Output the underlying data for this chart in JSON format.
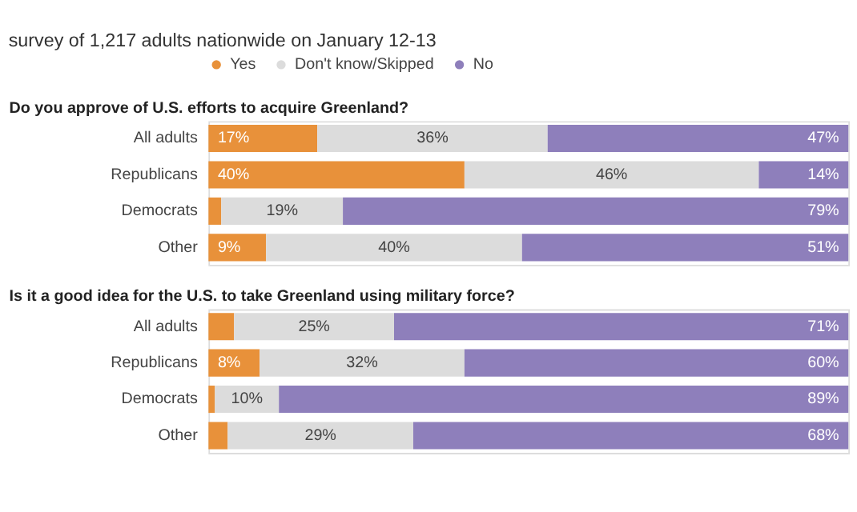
{
  "chart_data": [
    {
      "type": "bar",
      "orientation": "horizontal",
      "stacked": true,
      "title": "survey of 1,217 adults nationwide on January 12-13",
      "subtitle": "Do you approve of U.S. efforts to acquire Greenland?",
      "categories": [
        "All adults",
        "Republicans",
        "Democrats",
        "Other"
      ],
      "xlim": [
        0,
        100
      ],
      "tick_labels": "y",
      "legend": "top left",
      "series": [
        {
          "name": "Yes",
          "color": "#e8913a",
          "values": [
            17,
            40,
            2,
            9
          ],
          "value_labels": [
            "17%",
            "40%",
            null,
            "9%"
          ]
        },
        {
          "name": "Don't know/Skipped",
          "color": "#dcdcdc",
          "values": [
            36,
            46,
            19,
            40
          ],
          "value_labels": [
            "36%",
            "46%",
            "19%",
            "40%"
          ]
        },
        {
          "name": "No",
          "color": "#8e7fbb",
          "values": [
            47,
            14,
            79,
            51
          ],
          "value_labels": [
            "47%",
            "14%",
            "79%",
            "51%"
          ]
        }
      ]
    },
    {
      "type": "bar",
      "orientation": "horizontal",
      "stacked": true,
      "subtitle": "Is it a good idea for the U.S. to take Greenland using military force?",
      "categories": [
        "All adults",
        "Republicans",
        "Democrats",
        "Other"
      ],
      "xlim": [
        0,
        100
      ],
      "tick_labels": "y",
      "series": [
        {
          "name": "Yes",
          "color": "#e8913a",
          "values": [
            4,
            8,
            1,
            3
          ],
          "value_labels": [
            null,
            "8%",
            null,
            null
          ]
        },
        {
          "name": "Don't know/Skipped",
          "color": "#dcdcdc",
          "values": [
            25,
            32,
            10,
            29
          ],
          "value_labels": [
            "25%",
            "32%",
            "10%",
            "29%"
          ]
        },
        {
          "name": "No",
          "color": "#8e7fbb",
          "values": [
            71,
            60,
            89,
            68
          ],
          "value_labels": [
            "71%",
            "60%",
            "89%",
            "68%"
          ]
        }
      ]
    }
  ]
}
